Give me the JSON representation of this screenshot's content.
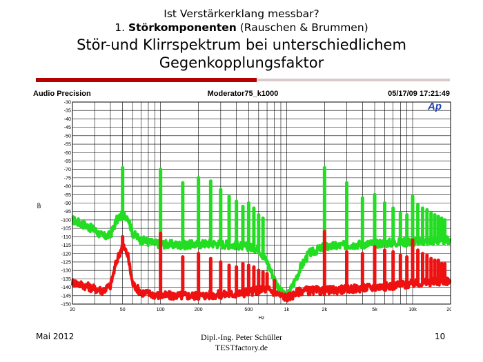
{
  "slide": {
    "title_line1": "Ist Verstärkerklang messbar?",
    "title_line2_prefix": "1. ",
    "title_line2_bold": "Störkomponenten",
    "title_line2_suffix": " (Rauschen & Brummen)",
    "main_title": "Stör-und Klirrspektrum bei unterschiedlichem Gegenkopplungsfaktor",
    "footer_date": "Mai 2012",
    "footer_author_line1": "Dipl.-Ing. Peter Schüller",
    "footer_author_line2": "TESTfactory.de",
    "page_number": "10"
  },
  "chart_data": {
    "type": "line",
    "header_left": "Audio Precision",
    "header_center": "Moderator75_k1000",
    "header_right": "05/17/09 17:21:49",
    "logo_text": "Ap",
    "ylabel": "dB",
    "xlabel": "Hz",
    "x_scale": "log",
    "xlim": [
      20,
      20000
    ],
    "ylim": [
      -150,
      -30
    ],
    "y_ticks": [
      "-30",
      "-35",
      "-40",
      "-45",
      "-50",
      "-55",
      "-60",
      "-65",
      "-70",
      "-75",
      "-80",
      "-85",
      "-90",
      "-95",
      "-100",
      "-105",
      "-110",
      "-115",
      "-120",
      "-125",
      "-130",
      "-135",
      "-140",
      "-145",
      "-150"
    ],
    "x_ticks": [
      {
        "v": 20,
        "label": "20"
      },
      {
        "v": 50,
        "label": "50"
      },
      {
        "v": 100,
        "label": "100"
      },
      {
        "v": 200,
        "label": "200"
      },
      {
        "v": 500,
        "label": "500"
      },
      {
        "v": 1000,
        "label": "1k"
      },
      {
        "v": 2000,
        "label": "2k"
      },
      {
        "v": 5000,
        "label": "5k"
      },
      {
        "v": 10000,
        "label": "10k"
      },
      {
        "v": 20000,
        "label": "20k"
      }
    ],
    "grid": true,
    "colors": {
      "green": "#22dd22",
      "red": "#ee1111",
      "logo": "#1a3fb8",
      "grid": "#000000"
    },
    "series": [
      {
        "color": "green",
        "floor": [
          [
            20,
            -100
          ],
          [
            25,
            -103
          ],
          [
            30,
            -106
          ],
          [
            35,
            -110
          ],
          [
            40,
            -109
          ],
          [
            45,
            -100
          ],
          [
            50,
            -97
          ],
          [
            55,
            -98
          ],
          [
            60,
            -108
          ],
          [
            70,
            -112
          ],
          [
            90,
            -114
          ],
          [
            150,
            -115
          ],
          [
            250,
            -114
          ],
          [
            400,
            -115
          ],
          [
            600,
            -117
          ],
          [
            700,
            -125
          ],
          [
            800,
            -135
          ],
          [
            900,
            -143
          ],
          [
            1000,
            -146
          ],
          [
            1100,
            -140
          ],
          [
            1300,
            -128
          ],
          [
            1500,
            -120
          ],
          [
            2000,
            -116
          ],
          [
            3000,
            -115
          ],
          [
            5000,
            -114
          ],
          [
            10000,
            -113
          ],
          [
            20000,
            -112
          ]
        ],
        "peaks": [
          [
            50,
            -69
          ],
          [
            100,
            -70
          ],
          [
            150,
            -78
          ],
          [
            200,
            -75
          ],
          [
            250,
            -77
          ],
          [
            300,
            -82
          ],
          [
            350,
            -86
          ],
          [
            400,
            -89
          ],
          [
            450,
            -92
          ],
          [
            500,
            -90
          ],
          [
            550,
            -93
          ],
          [
            600,
            -97
          ],
          [
            650,
            -99
          ],
          [
            2000,
            -69
          ],
          [
            3000,
            -78
          ],
          [
            4000,
            -87
          ],
          [
            5000,
            -85
          ],
          [
            6000,
            -90
          ],
          [
            7000,
            -93
          ],
          [
            8000,
            -96
          ],
          [
            9000,
            -97
          ],
          [
            10000,
            -86
          ],
          [
            11000,
            -91
          ],
          [
            12000,
            -93
          ],
          [
            13000,
            -94
          ],
          [
            14000,
            -96
          ],
          [
            15000,
            -97
          ],
          [
            16000,
            -98
          ],
          [
            17000,
            -99
          ],
          [
            18000,
            -100
          ]
        ]
      },
      {
        "color": "red",
        "floor": [
          [
            20,
            -137
          ],
          [
            25,
            -139
          ],
          [
            30,
            -141
          ],
          [
            35,
            -142
          ],
          [
            40,
            -139
          ],
          [
            45,
            -124
          ],
          [
            50,
            -115
          ],
          [
            55,
            -121
          ],
          [
            60,
            -138
          ],
          [
            70,
            -143
          ],
          [
            100,
            -145
          ],
          [
            200,
            -145
          ],
          [
            400,
            -144
          ],
          [
            700,
            -141
          ],
          [
            800,
            -143
          ],
          [
            900,
            -145
          ],
          [
            1000,
            -146
          ],
          [
            1100,
            -145
          ],
          [
            1300,
            -142
          ],
          [
            2000,
            -142
          ],
          [
            5000,
            -140
          ],
          [
            10000,
            -138
          ],
          [
            20000,
            -136
          ]
        ],
        "peaks": [
          [
            50,
            -110
          ],
          [
            100,
            -108
          ],
          [
            150,
            -122
          ],
          [
            200,
            -120
          ],
          [
            250,
            -123
          ],
          [
            300,
            -125
          ],
          [
            350,
            -127
          ],
          [
            400,
            -128
          ],
          [
            450,
            -126
          ],
          [
            500,
            -127
          ],
          [
            550,
            -128
          ],
          [
            600,
            -130
          ],
          [
            650,
            -131
          ],
          [
            700,
            -132
          ],
          [
            800,
            -136
          ],
          [
            2000,
            -107
          ],
          [
            3000,
            -119
          ],
          [
            4000,
            -120
          ],
          [
            5000,
            -116
          ],
          [
            6000,
            -118
          ],
          [
            7000,
            -119
          ],
          [
            8000,
            -121
          ],
          [
            9000,
            -122
          ],
          [
            10000,
            -112
          ],
          [
            11000,
            -118
          ],
          [
            12000,
            -120
          ],
          [
            13000,
            -121
          ],
          [
            14000,
            -123
          ],
          [
            15000,
            -124
          ],
          [
            16000,
            -124
          ],
          [
            17000,
            -126
          ],
          [
            18000,
            -126
          ]
        ]
      }
    ]
  }
}
